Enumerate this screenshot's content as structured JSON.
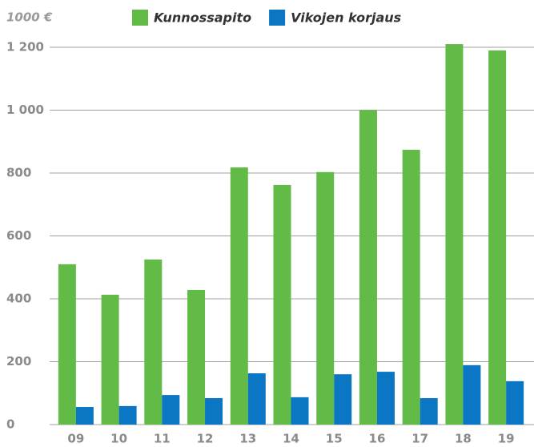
{
  "chart_data": {
    "type": "bar",
    "y_label": "1000 €",
    "categories": [
      "09",
      "10",
      "11",
      "12",
      "13",
      "14",
      "15",
      "16",
      "17",
      "18",
      "19"
    ],
    "series": [
      {
        "name": "Kunnossapito",
        "color": "#62bb46",
        "values": [
          510,
          413,
          525,
          428,
          818,
          762,
          803,
          1000,
          874,
          1210,
          1190
        ]
      },
      {
        "name": "Vikojen korjaus",
        "color": "#0a76c4",
        "values": [
          56,
          59,
          94,
          84,
          163,
          87,
          160,
          168,
          84,
          189,
          138
        ]
      }
    ],
    "ylim": [
      0,
      1200
    ],
    "yticks": [
      0,
      200,
      400,
      600,
      800,
      {
        "value": 1000,
        "label": "1 000"
      },
      {
        "value": 1200,
        "label": "1 200"
      }
    ],
    "grid": true,
    "legend": "top"
  }
}
